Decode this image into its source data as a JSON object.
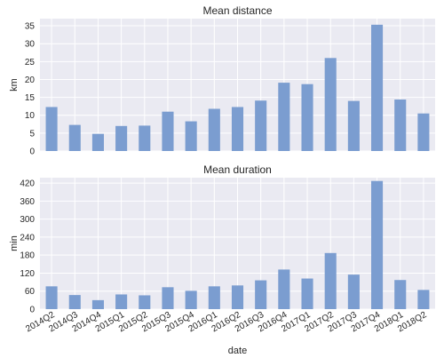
{
  "chart_data": [
    {
      "type": "bar",
      "title": "Mean distance",
      "xlabel": "",
      "ylabel": "km",
      "ylim": [
        0,
        37
      ],
      "yticks": [
        0,
        5,
        10,
        15,
        20,
        25,
        30,
        35
      ],
      "show_xticklabels": false,
      "grid": true,
      "bar_color": "#7b9dd0",
      "background": "#eaeaf2",
      "categories": [
        "2014Q2",
        "2014Q3",
        "2014Q4",
        "2015Q1",
        "2015Q2",
        "2015Q3",
        "2015Q4",
        "2016Q1",
        "2016Q2",
        "2016Q3",
        "2016Q4",
        "2017Q1",
        "2017Q2",
        "2017Q3",
        "2017Q4",
        "2018Q1",
        "2018Q2"
      ],
      "values": [
        12.3,
        7.3,
        4.8,
        7.0,
        7.1,
        11.0,
        8.3,
        11.8,
        12.3,
        14.1,
        19.1,
        18.7,
        26.0,
        14.0,
        35.3,
        14.4,
        10.5
      ]
    },
    {
      "type": "bar",
      "title": "Mean duration",
      "xlabel": "date",
      "ylabel": "min",
      "ylim": [
        0,
        438
      ],
      "yticks": [
        0,
        60,
        120,
        180,
        240,
        300,
        360,
        420
      ],
      "show_xticklabels": true,
      "grid": true,
      "bar_color": "#7b9dd0",
      "background": "#eaeaf2",
      "categories": [
        "2014Q2",
        "2014Q3",
        "2014Q4",
        "2015Q1",
        "2015Q2",
        "2015Q3",
        "2015Q4",
        "2016Q1",
        "2016Q2",
        "2016Q3",
        "2016Q4",
        "2017Q1",
        "2017Q2",
        "2017Q3",
        "2017Q4",
        "2018Q1",
        "2018Q2"
      ],
      "values": [
        76,
        47,
        30,
        49,
        46,
        73,
        61,
        76,
        79,
        96,
        132,
        102,
        187,
        115,
        427,
        97,
        64
      ]
    }
  ]
}
